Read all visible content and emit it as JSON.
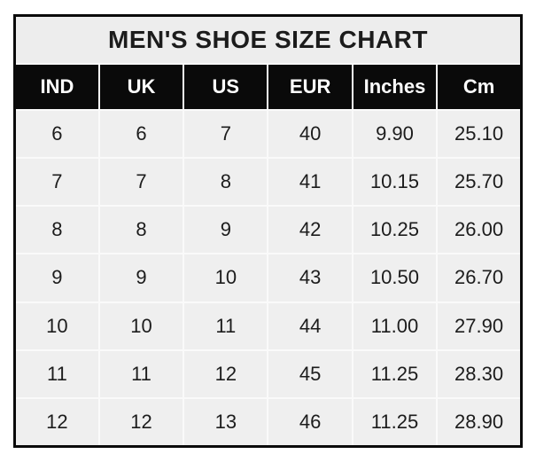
{
  "chart_data": {
    "type": "table",
    "title": "MEN'S SHOE SIZE CHART",
    "columns": [
      "IND",
      "UK",
      "US",
      "EUR",
      "Inches",
      "Cm"
    ],
    "rows": [
      [
        "6",
        "6",
        "7",
        "40",
        "9.90",
        "25.10"
      ],
      [
        "7",
        "7",
        "8",
        "41",
        "10.15",
        "25.70"
      ],
      [
        "8",
        "8",
        "9",
        "42",
        "10.25",
        "26.00"
      ],
      [
        "9",
        "9",
        "10",
        "43",
        "10.50",
        "26.70"
      ],
      [
        "10",
        "10",
        "11",
        "44",
        "11.00",
        "27.90"
      ],
      [
        "11",
        "11",
        "12",
        "45",
        "11.25",
        "28.30"
      ],
      [
        "12",
        "12",
        "13",
        "46",
        "11.25",
        "28.90"
      ]
    ]
  },
  "colors": {
    "border": "#0a0a0a",
    "header_bg": "#0a0a0a",
    "header_text": "#ffffff",
    "title_bg": "#ededed",
    "cell_bg": "#efefef",
    "gutter": "#fafafa",
    "text": "#1c1c1c",
    "page_bg": "#ffffff"
  }
}
